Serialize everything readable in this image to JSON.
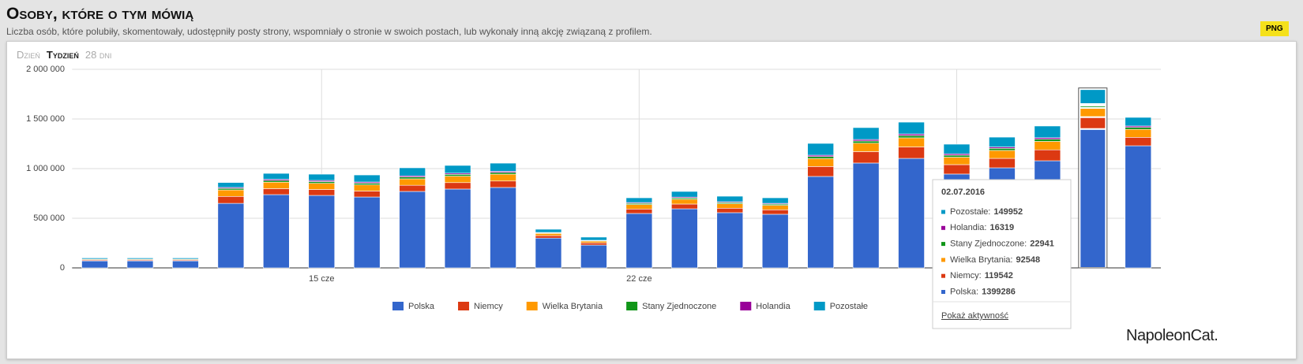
{
  "header": {
    "title": "Osoby, które o tym mówią",
    "subtitle": "Liczba osób, które polubiły, skomentowały, udostępniły posty strony, wspomniały o stronie w swoich postach, lub wykonały inną akcję związaną z profilem.",
    "button": "PNG"
  },
  "tabs": [
    "Dzień",
    "Tydzień",
    "28 dni"
  ],
  "brand": "NapoleonCat.",
  "chart_data": {
    "type": "stacked_bar",
    "categories": [
      null,
      null,
      null,
      null,
      null,
      "15 cze",
      null,
      null,
      null,
      null,
      null,
      null,
      "22 cze",
      null,
      null,
      null,
      null,
      null,
      null,
      null,
      null,
      null,
      null,
      null
    ],
    "series": [
      {
        "name": "Polska",
        "color": "#3366cc",
        "values": [
          70000,
          70000,
          70000,
          650000,
          738000,
          730000,
          714000,
          770000,
          794000,
          810000,
          300000,
          230000,
          548000,
          595000,
          556000,
          540000,
          921000,
          1056000,
          1103000,
          945000,
          1008000,
          1079000,
          1399286,
          1230000
        ]
      },
      {
        "name": "Niemcy",
        "color": "#dc3912",
        "values": [
          8000,
          8000,
          8000,
          70000,
          60000,
          60000,
          60000,
          62000,
          65000,
          65000,
          25000,
          22000,
          45000,
          48000,
          45000,
          45000,
          100000,
          115000,
          115000,
          95000,
          95000,
          110000,
          119542,
          85000
        ]
      },
      {
        "name": "Wielka Brytania",
        "color": "#ff9900",
        "values": [
          7000,
          7000,
          7000,
          65000,
          65000,
          62000,
          62000,
          65000,
          65000,
          68000,
          22000,
          18000,
          45000,
          48000,
          45000,
          45000,
          80000,
          85000,
          92000,
          75000,
          80000,
          85000,
          92548,
          80000
        ]
      },
      {
        "name": "Stany Zjednoczone",
        "color": "#109618",
        "values": [
          2000,
          2000,
          2000,
          15000,
          17000,
          17000,
          17000,
          18000,
          18000,
          18000,
          6000,
          5000,
          12000,
          13000,
          12000,
          12000,
          20000,
          22000,
          23000,
          20000,
          21000,
          22000,
          22941,
          20000
        ]
      },
      {
        "name": "Holandia",
        "color": "#990099",
        "values": [
          1000,
          1000,
          1000,
          10000,
          12000,
          12000,
          12000,
          12000,
          12000,
          12000,
          4000,
          3000,
          8000,
          9000,
          8000,
          8000,
          14000,
          15000,
          16000,
          14000,
          14000,
          15000,
          16319,
          14000
        ]
      },
      {
        "name": "Pozostałe",
        "color": "#0099c6",
        "values": [
          12000,
          12000,
          12000,
          50000,
          60000,
          63000,
          71000,
          81000,
          78000,
          82000,
          32000,
          32000,
          48000,
          57000,
          56000,
          56000,
          119000,
          120000,
          119000,
          97000,
          99000,
          118000,
          149952,
          87000
        ]
      }
    ],
    "ylim": [
      0,
      2000000
    ],
    "yticks": [
      0,
      {
        "value": 500000,
        "label": "500 000"
      },
      {
        "value": 1000000,
        "label": "1 000 000"
      },
      {
        "value": 1500000,
        "label": "1 500 000"
      },
      {
        "value": 2000000,
        "label": "2 000 000"
      }
    ],
    "grid": true,
    "legend": "bottom",
    "tooltip": {
      "date": "02.07.2016",
      "items": [
        {
          "label": "Pozostałe:",
          "value": 149952,
          "color": "#0099c6"
        },
        {
          "label": "Holandia:",
          "value": 16319,
          "color": "#990099"
        },
        {
          "label": "Stany Zjednoczone:",
          "value": 22941,
          "color": "#109618"
        },
        {
          "label": "Wielka Brytania:",
          "value": 92548,
          "color": "#ff9900"
        },
        {
          "label": "Niemcy:",
          "value": 119542,
          "color": "#dc3912"
        },
        {
          "label": "Polska:",
          "value": 1399286,
          "color": "#3366cc"
        }
      ],
      "link": "Pokaż aktywność"
    }
  }
}
